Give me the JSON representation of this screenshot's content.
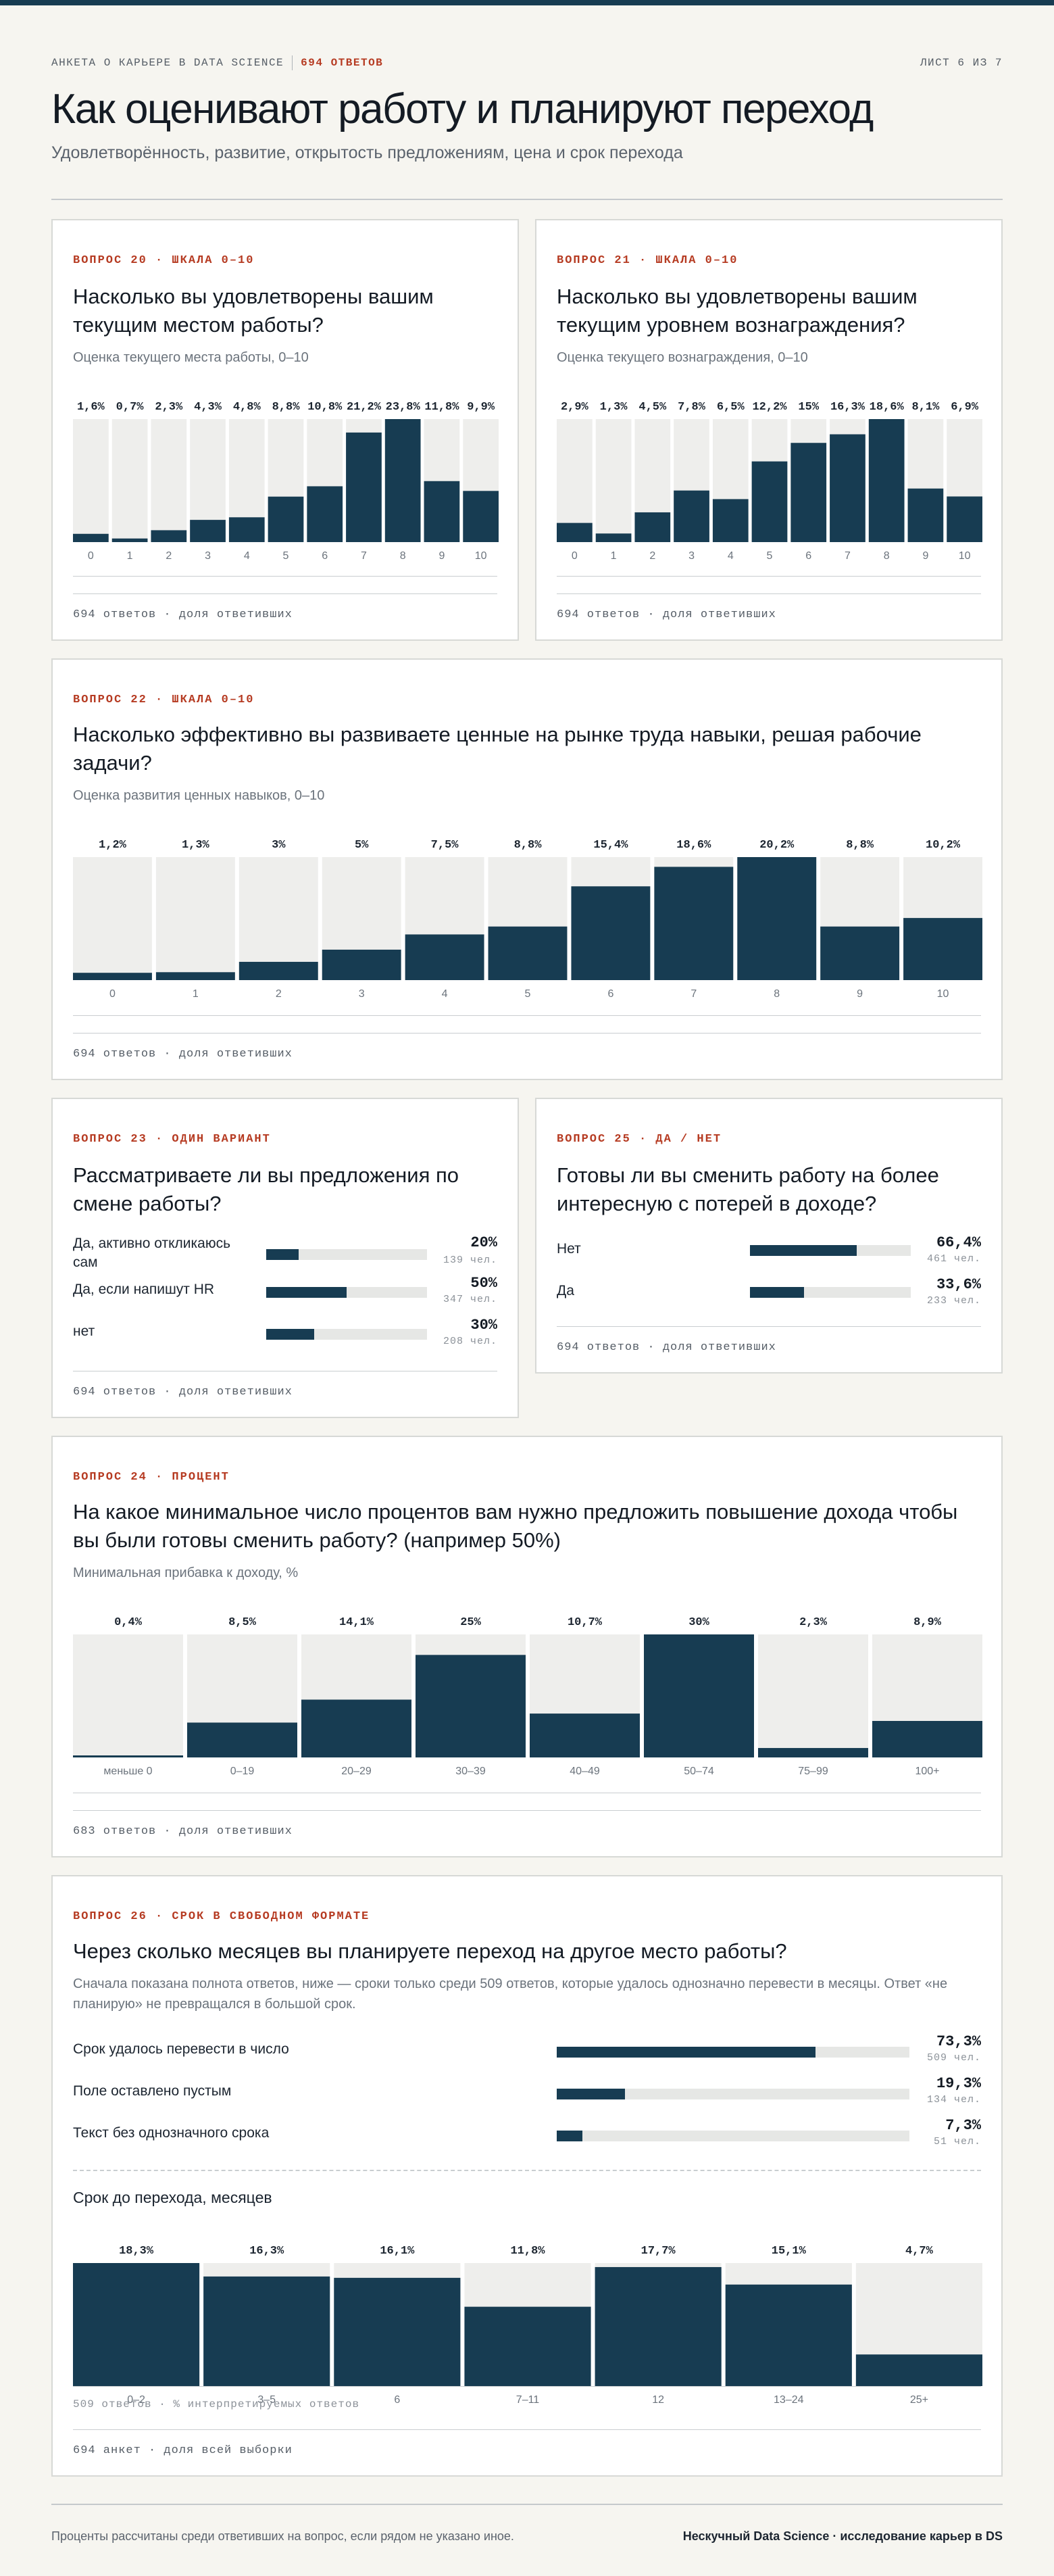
{
  "header": {
    "survey": "АНКЕТА О КАРЬЕРЕ В DATA SCIENCE",
    "responses": "694 ОТВЕТОВ",
    "sheet": "ЛИСТ 6 ИЗ 7",
    "title": "Как оценивают работу и планируют переход",
    "subtitle": "Удовлетворённость, развитие, открытость предложениям, цена и срок перехода"
  },
  "colors": {
    "bar": "#173c52",
    "track": "#eeeeec",
    "accent": "#b63b22"
  },
  "q20": {
    "tag": "ВОПРОС 20 · ШКАЛА 0–10",
    "question": "Насколько вы удовлетворены вашим текущим местом работы?",
    "note": "Оценка текущего места работы, 0–10",
    "footer": "694 ответов · доля ответивших"
  },
  "q21": {
    "tag": "ВОПРОС 21 · ШКАЛА 0–10",
    "question": "Насколько вы удовлетворены вашим текущим уровнем вознаграждения?",
    "note": "Оценка текущего вознаграждения, 0–10",
    "footer": "694 ответов · доля ответивших"
  },
  "q22": {
    "tag": "ВОПРОС 22 · ШКАЛА 0–10",
    "question": "Насколько эффективно вы развиваете ценные на рынке труда навыки, решая рабочие задачи?",
    "note": "Оценка развития ценных навыков, 0–10",
    "footer": "694 ответов · доля ответивших"
  },
  "q23": {
    "tag": "ВОПРОС 23 · ОДИН ВАРИАНТ",
    "question": "Рассматриваете ли вы предложения по смене работы?",
    "items": [
      {
        "label": "Да, активно откликаюсь сам",
        "value": 20,
        "pct": "20%",
        "count": "139 чел."
      },
      {
        "label": "Да, если напишут HR",
        "value": 50,
        "pct": "50%",
        "count": "347 чел."
      },
      {
        "label": "нет",
        "value": 30,
        "pct": "30%",
        "count": "208 чел."
      }
    ],
    "footer": "694 ответов · доля ответивших"
  },
  "q25": {
    "tag": "ВОПРОС 25 · ДА / НЕТ",
    "question": "Готовы ли вы сменить работу на более интересную с потерей в доходе?",
    "items": [
      {
        "label": "Нет",
        "value": 66.4,
        "pct": "66,4%",
        "count": "461 чел."
      },
      {
        "label": "Да",
        "value": 33.6,
        "pct": "33,6%",
        "count": "233 чел."
      }
    ],
    "footer": "694 ответов · доля ответивших"
  },
  "q24": {
    "tag": "ВОПРОС 24 · ПРОЦЕНТ",
    "question": "На какое минимальное число процентов вам нужно предложить повышение дохода чтобы вы были готовы сменить работу? (например 50%)",
    "note": "Минимальная прибавка к доходу, %",
    "footer": "683 ответов · доля ответивших"
  },
  "q26": {
    "tag": "ВОПРОС 26 · СРОК В СВОБОДНОМ ФОРМАТЕ",
    "question": "Через сколько месяцев вы планируете переход на другое место работы?",
    "note": "Сначала показана полнота ответов, ниже — сроки только среди 509 ответов, которые удалось однозначно перевести в месяцы. Ответ «не планирую» не превращался в большой срок.",
    "items": [
      {
        "label": "Срок удалось перевести в число",
        "value": 73.3,
        "pct": "73,3%",
        "count": "509 чел."
      },
      {
        "label": "Поле оставлено пустым",
        "value": 19.3,
        "pct": "19,3%",
        "count": "134 чел."
      },
      {
        "label": "Текст без однозначного срока",
        "value": 7.3,
        "pct": "7,3%",
        "count": "51 чел."
      }
    ],
    "sublabel": "Срок до перехода, месяцев",
    "footer1": "509 ответов · % интерпретируемых ответов",
    "footer2": "694 анкет · доля всей выборки"
  },
  "footer": {
    "left": "Проценты рассчитаны среди ответивших на вопрос, если рядом не указано иное.",
    "right": "Нескучный Data Science · исследование карьер в DS"
  },
  "chart_data": [
    {
      "id": "q20",
      "type": "bar",
      "ylim": [
        0,
        23.8
      ],
      "categories": [
        "0",
        "1",
        "2",
        "3",
        "4",
        "5",
        "6",
        "7",
        "8",
        "9",
        "10"
      ],
      "values": [
        1.6,
        0.7,
        2.3,
        4.3,
        4.8,
        8.8,
        10.8,
        21.2,
        23.8,
        11.8,
        9.9
      ],
      "labels": [
        "1,6%",
        "0,7%",
        "2,3%",
        "4,3%",
        "4,8%",
        "8,8%",
        "10,8%",
        "21,2%",
        "23,8%",
        "11,8%",
        "9,9%"
      ]
    },
    {
      "id": "q21",
      "type": "bar",
      "ylim": [
        0,
        18.6
      ],
      "categories": [
        "0",
        "1",
        "2",
        "3",
        "4",
        "5",
        "6",
        "7",
        "8",
        "9",
        "10"
      ],
      "values": [
        2.9,
        1.3,
        4.5,
        7.8,
        6.5,
        12.2,
        15,
        16.3,
        18.6,
        8.1,
        6.9
      ],
      "labels": [
        "2,9%",
        "1,3%",
        "4,5%",
        "7,8%",
        "6,5%",
        "12,2%",
        "15%",
        "16,3%",
        "18,6%",
        "8,1%",
        "6,9%"
      ]
    },
    {
      "id": "q22",
      "type": "bar",
      "ylim": [
        0,
        20.2
      ],
      "categories": [
        "0",
        "1",
        "2",
        "3",
        "4",
        "5",
        "6",
        "7",
        "8",
        "9",
        "10"
      ],
      "values": [
        1.2,
        1.3,
        3,
        5,
        7.5,
        8.8,
        15.4,
        18.6,
        20.2,
        8.8,
        10.2
      ],
      "labels": [
        "1,2%",
        "1,3%",
        "3%",
        "5%",
        "7,5%",
        "8,8%",
        "15,4%",
        "18,6%",
        "20,2%",
        "8,8%",
        "10,2%"
      ]
    },
    {
      "id": "q24",
      "type": "bar",
      "ylim": [
        0,
        30
      ],
      "categories": [
        "меньше 0",
        "0–19",
        "20–29",
        "30–39",
        "40–49",
        "50–74",
        "75–99",
        "100+"
      ],
      "values": [
        0.4,
        8.5,
        14.1,
        25,
        10.7,
        30,
        2.3,
        8.9
      ],
      "labels": [
        "0,4%",
        "8,5%",
        "14,1%",
        "25%",
        "10,7%",
        "30%",
        "2,3%",
        "8,9%"
      ]
    },
    {
      "id": "q26",
      "type": "bar",
      "ylim": [
        0,
        18.3
      ],
      "categories": [
        "0–2",
        "3–5",
        "6",
        "7–11",
        "12",
        "13–24",
        "25+"
      ],
      "values": [
        18.3,
        16.3,
        16.1,
        11.8,
        17.7,
        15.1,
        4.7
      ],
      "labels": [
        "18,3%",
        "16,3%",
        "16,1%",
        "11,8%",
        "17,7%",
        "15,1%",
        "4,7%"
      ]
    }
  ]
}
